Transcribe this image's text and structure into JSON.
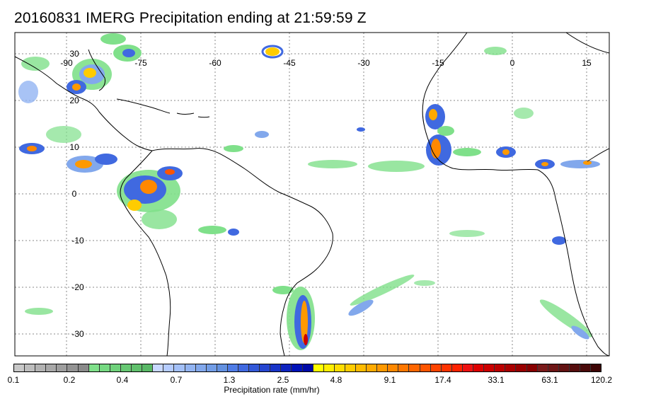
{
  "title": "20160831 IMERG Precipitation ending at 21:59:59 Z",
  "map": {
    "longitude_labels": [
      "-90",
      "-75",
      "-60",
      "-45",
      "-30",
      "-15",
      "0",
      "15"
    ],
    "latitude_labels": [
      "30",
      "20",
      "10",
      "0",
      "-10",
      "-20",
      "-30"
    ],
    "gridlines": "dotted"
  },
  "colorbar": {
    "title": "Precipitation rate (mm/hr)",
    "tick_labels": [
      "0.1",
      "0.2",
      "0.4",
      "0.7",
      "1.3",
      "2.5",
      "4.8",
      "9.1",
      "17.4",
      "33.1",
      "63.1",
      "120.2"
    ],
    "colors": [
      "#c8c8c8",
      "#bdbdbd",
      "#b2b2b2",
      "#a8a8a8",
      "#9e9e9e",
      "#939393",
      "#8a8a8a",
      "#7fe08a",
      "#76d982",
      "#6fd17b",
      "#67c873",
      "#60c06c",
      "#59b866",
      "#c8d8ff",
      "#b5ccff",
      "#a3c0f8",
      "#92b4f2",
      "#82a8ec",
      "#729de6",
      "#6391e0",
      "#4f7ce6",
      "#4069e0",
      "#3358d8",
      "#2646d0",
      "#1935c8",
      "#0f24c0",
      "#0012b8",
      "#000aa8",
      "#ffff00",
      "#ffee00",
      "#ffdd00",
      "#ffcc00",
      "#ffbb00",
      "#ffaa00",
      "#ff9900",
      "#ff8800",
      "#ff7700",
      "#ff6600",
      "#ff5500",
      "#ff4400",
      "#ff3300",
      "#ff2200",
      "#ee1111",
      "#dd0000",
      "#cc0000",
      "#bb0000",
      "#aa0000",
      "#990000",
      "#880000",
      "#7a1a1a",
      "#6e1616",
      "#621212",
      "#560e0e",
      "#4a0a0a",
      "#3e0606"
    ]
  }
}
